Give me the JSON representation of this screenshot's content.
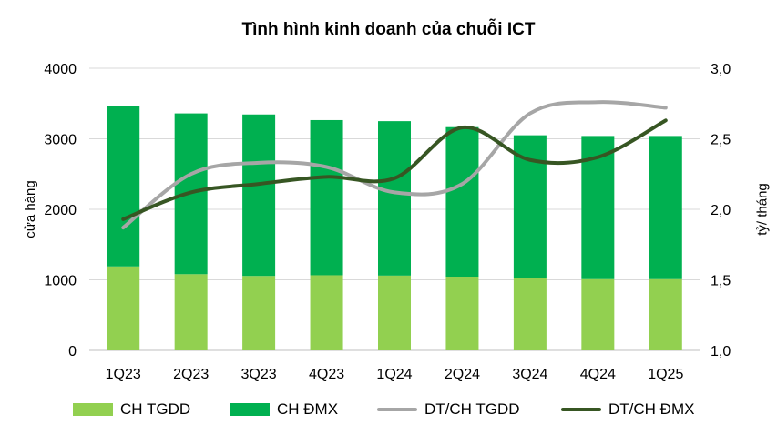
{
  "chart_data": {
    "type": "bar",
    "title": "Tình hình kinh doanh của chuỗi ICT",
    "ylabel": "cửa hàng",
    "y2label": "tỷ/ tháng",
    "ylim": [
      0,
      4000
    ],
    "y2lim": [
      1.0,
      3.0
    ],
    "yticks": [
      "0",
      "1000",
      "2000",
      "3000",
      "4000"
    ],
    "y2ticks": [
      "1,0",
      "1,5",
      "2,0",
      "2,5",
      "3,0"
    ],
    "categories": [
      "1Q23",
      "2Q23",
      "3Q23",
      "4Q23",
      "1Q24",
      "2Q24",
      "3Q24",
      "4Q24",
      "1Q25"
    ],
    "series": [
      {
        "name": "CH TGDD",
        "kind": "stacked-bar",
        "color": "#92d050",
        "values": [
          1190,
          1080,
          1055,
          1065,
          1060,
          1045,
          1020,
          1010,
          1010
        ]
      },
      {
        "name": "CH ĐMX",
        "kind": "stacked-bar",
        "color": "#00b050",
        "values": [
          2280,
          2280,
          2290,
          2200,
          2190,
          2120,
          2030,
          2030,
          2030
        ]
      },
      {
        "name": "DT/CH TGDD",
        "kind": "line",
        "axis": "right",
        "color": "#a6a6a6",
        "values": [
          1.87,
          2.25,
          2.33,
          2.3,
          2.12,
          2.18,
          2.68,
          2.76,
          2.72
        ]
      },
      {
        "name": "DT/CH ĐMX",
        "kind": "line",
        "axis": "right",
        "color": "#375623",
        "values": [
          1.93,
          2.12,
          2.18,
          2.23,
          2.22,
          2.58,
          2.35,
          2.37,
          2.63
        ]
      }
    ],
    "grid": true,
    "legend": "bottom"
  }
}
